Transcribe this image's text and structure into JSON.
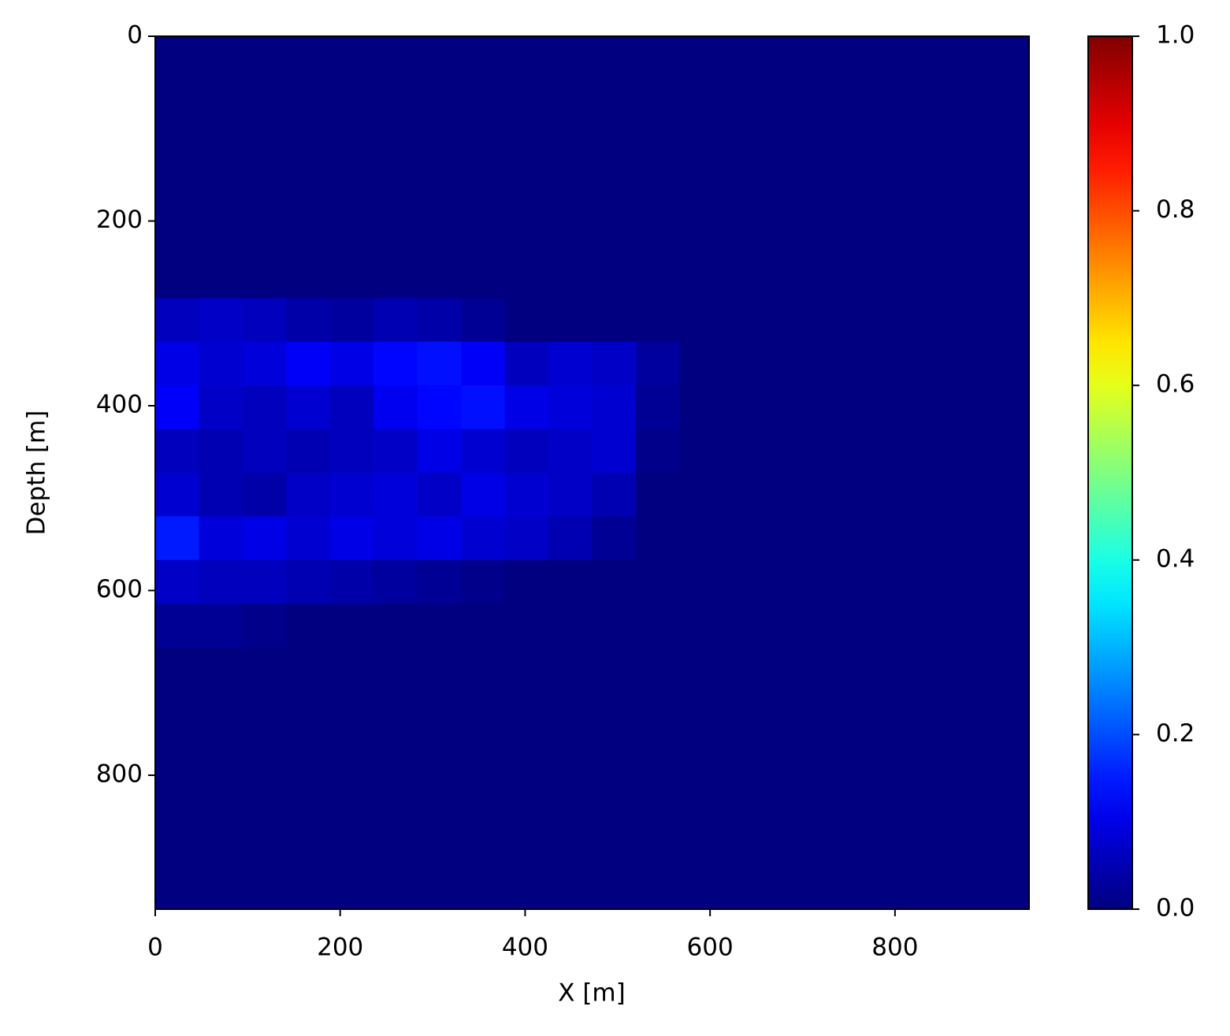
{
  "chart_data": {
    "type": "heatmap",
    "xlabel": "X [m]",
    "ylabel": "Depth [m]",
    "xlim": [
      0,
      945
    ],
    "ylim": [
      945,
      0
    ],
    "xticks": [
      0,
      200,
      400,
      600,
      800
    ],
    "yticks": [
      0,
      200,
      400,
      600,
      800
    ],
    "colormap": "jet",
    "clim": [
      0,
      1
    ],
    "cticks": [
      {
        "value": 0,
        "label": "0.0"
      },
      0.2,
      0.4,
      0.6,
      0.8,
      {
        "value": 1,
        "label": "1.0"
      }
    ],
    "z": [
      [
        0,
        0,
        0,
        0,
        0,
        0,
        0,
        0,
        0,
        0,
        0,
        0,
        0,
        0,
        0,
        0,
        0,
        0,
        0,
        0
      ],
      [
        0,
        0,
        0,
        0,
        0,
        0,
        0,
        0,
        0,
        0,
        0,
        0,
        0,
        0,
        0,
        0,
        0,
        0,
        0,
        0
      ],
      [
        0,
        0,
        0,
        0,
        0,
        0,
        0,
        0,
        0,
        0,
        0,
        0,
        0,
        0,
        0,
        0,
        0,
        0,
        0,
        0
      ],
      [
        0,
        0,
        0,
        0,
        0,
        0,
        0,
        0,
        0,
        0,
        0,
        0,
        0,
        0,
        0,
        0,
        0,
        0,
        0,
        0
      ],
      [
        0,
        0,
        0,
        0,
        0,
        0,
        0,
        0,
        0,
        0,
        0,
        0,
        0,
        0,
        0,
        0,
        0,
        0,
        0,
        0
      ],
      [
        0,
        0,
        0,
        0,
        0,
        0,
        0,
        0,
        0,
        0,
        0,
        0,
        0,
        0,
        0,
        0,
        0,
        0,
        0,
        0
      ],
      [
        0.06,
        0.07,
        0.06,
        0.04,
        0.03,
        0.05,
        0.04,
        0.02,
        0,
        0,
        0,
        0,
        0,
        0,
        0,
        0,
        0,
        0,
        0,
        0
      ],
      [
        0.1,
        0.08,
        0.09,
        0.12,
        0.1,
        0.13,
        0.14,
        0.12,
        0.06,
        0.08,
        0.07,
        0.03,
        0,
        0,
        0,
        0,
        0,
        0,
        0,
        0
      ],
      [
        0.12,
        0.07,
        0.06,
        0.08,
        0.06,
        0.11,
        0.13,
        0.14,
        0.1,
        0.09,
        0.08,
        0.02,
        0,
        0,
        0,
        0,
        0,
        0,
        0,
        0
      ],
      [
        0.06,
        0.05,
        0.06,
        0.05,
        0.06,
        0.07,
        0.1,
        0.08,
        0.06,
        0.07,
        0.08,
        0.01,
        0,
        0,
        0,
        0,
        0,
        0,
        0,
        0
      ],
      [
        0.08,
        0.05,
        0.04,
        0.07,
        0.08,
        0.09,
        0.07,
        0.1,
        0.08,
        0.07,
        0.05,
        0,
        0,
        0,
        0,
        0,
        0,
        0,
        0,
        0
      ],
      [
        0.15,
        0.09,
        0.1,
        0.08,
        0.1,
        0.09,
        0.1,
        0.08,
        0.07,
        0.05,
        0.02,
        0,
        0,
        0,
        0,
        0,
        0,
        0,
        0,
        0
      ],
      [
        0.07,
        0.06,
        0.06,
        0.05,
        0.04,
        0.03,
        0.02,
        0.01,
        0,
        0,
        0,
        0,
        0,
        0,
        0,
        0,
        0,
        0,
        0,
        0
      ],
      [
        0.02,
        0.02,
        0.01,
        0,
        0,
        0,
        0,
        0,
        0,
        0,
        0,
        0,
        0,
        0,
        0,
        0,
        0,
        0,
        0,
        0
      ],
      [
        0,
        0,
        0,
        0,
        0,
        0,
        0,
        0,
        0,
        0,
        0,
        0,
        0,
        0,
        0,
        0,
        0,
        0,
        0,
        0
      ],
      [
        0,
        0,
        0,
        0,
        0,
        0,
        0,
        0,
        0,
        0,
        0,
        0,
        0,
        0,
        0,
        0,
        0,
        0,
        0,
        0
      ],
      [
        0,
        0,
        0,
        0,
        0,
        0,
        0,
        0,
        0,
        0,
        0,
        0,
        0,
        0,
        0,
        0,
        0,
        0,
        0,
        0
      ],
      [
        0,
        0,
        0,
        0,
        0,
        0,
        0,
        0,
        0,
        0,
        0,
        0,
        0,
        0,
        0,
        0,
        0,
        0,
        0,
        0
      ],
      [
        0,
        0,
        0,
        0,
        0,
        0,
        0,
        0,
        0,
        0,
        0,
        0,
        0,
        0,
        0,
        0,
        0,
        0,
        0,
        0
      ],
      [
        0,
        0,
        0,
        0,
        0,
        0,
        0,
        0,
        0,
        0,
        0,
        0,
        0,
        0,
        0,
        0,
        0,
        0,
        0,
        0
      ]
    ]
  }
}
